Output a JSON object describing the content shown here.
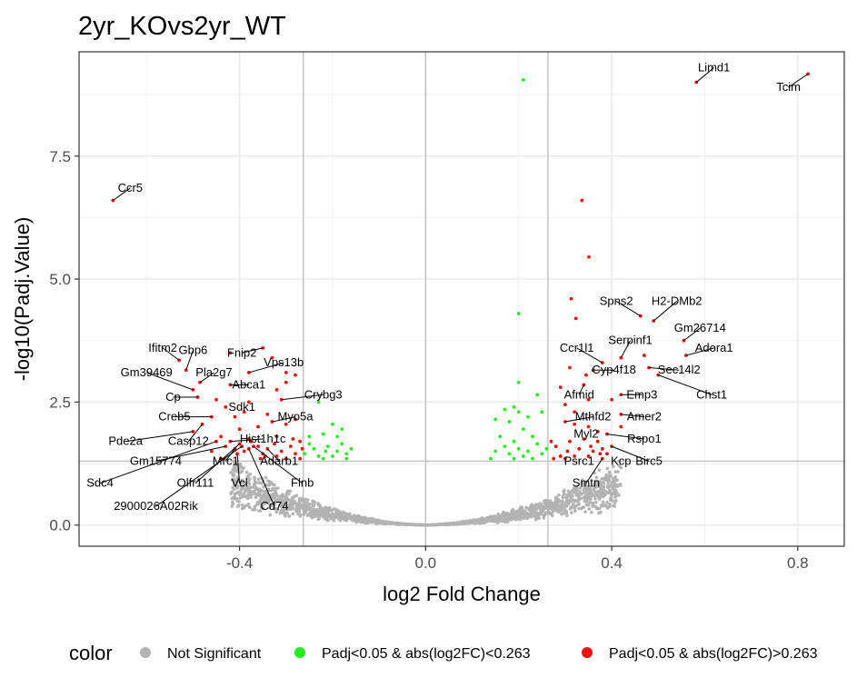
{
  "chart_data": {
    "type": "scatter",
    "title": "2yr_KOvs2yr_WT",
    "xlabel": "log2 Fold Change",
    "ylabel": "-log10(Padj.Value)",
    "xlim": [
      -0.745,
      0.9
    ],
    "ylim": [
      -0.43,
      9.62
    ],
    "x_ticks": [
      -0.4,
      0.0,
      0.4,
      0.8
    ],
    "x_tick_labels": [
      "-0.4",
      "0.0",
      "0.4",
      "0.8"
    ],
    "y_ticks": [
      0.0,
      2.5,
      5.0,
      7.5
    ],
    "y_tick_labels": [
      "0.0",
      "2.5",
      "5.0",
      "7.5"
    ],
    "vlines": [
      -0.263,
      0.0,
      0.263
    ],
    "hline": 1.3,
    "grid": true,
    "legend": {
      "title": "color",
      "position": "bottom",
      "entries": [
        {
          "label": "Not Significant",
          "color": "#b3b3b3"
        },
        {
          "label": "Padj<0.05 & abs(log2FC)<0.263",
          "color": "#22ee22"
        },
        {
          "label": "Padj<0.05 & abs(log2FC)>0.263",
          "color": "#ee1111"
        }
      ]
    },
    "series": [
      {
        "category": "Padj<0.05 & abs(log2FC)>0.263",
        "color": "#ee1111",
        "points": [
          {
            "x": 0.822,
            "y": 9.17,
            "label": "Tcim",
            "lx": 0.78,
            "ly": 8.9
          },
          {
            "x": 0.582,
            "y": 9.0,
            "label": "Limd1",
            "lx": 0.62,
            "ly": 9.3
          },
          {
            "x": -0.672,
            "y": 6.6,
            "label": "Ccr5",
            "lx": -0.635,
            "ly": 6.85
          },
          {
            "x": 0.336,
            "y": 6.6
          },
          {
            "x": 0.351,
            "y": 5.45
          },
          {
            "x": 0.313,
            "y": 4.6
          },
          {
            "x": 0.323,
            "y": 4.2
          },
          {
            "x": 0.462,
            "y": 4.25,
            "label": "Spns2",
            "lx": 0.41,
            "ly": 4.55
          },
          {
            "x": 0.49,
            "y": 4.15,
            "label": "H2-DMb2",
            "lx": 0.54,
            "ly": 4.55
          },
          {
            "x": 0.555,
            "y": 3.75,
            "label": "Gm26714",
            "lx": 0.59,
            "ly": 4.0
          },
          {
            "x": 0.56,
            "y": 3.45,
            "label": "Adora1",
            "lx": 0.62,
            "ly": 3.6
          },
          {
            "x": 0.42,
            "y": 3.4,
            "label": "Serpinf1",
            "lx": 0.44,
            "ly": 3.75
          },
          {
            "x": 0.38,
            "y": 3.3,
            "label": "Ccr1l1",
            "lx": 0.325,
            "ly": 3.6
          },
          {
            "x": 0.47,
            "y": 3.45
          },
          {
            "x": 0.36,
            "y": 3.15,
            "label": "Cyp4f18",
            "lx": 0.405,
            "ly": 3.15
          },
          {
            "x": 0.48,
            "y": 3.2,
            "label": "Sec14l2",
            "lx": 0.545,
            "ly": 3.15
          },
          {
            "x": 0.5,
            "y": 3.05,
            "label": "Chst1",
            "lx": 0.615,
            "ly": 2.65
          },
          {
            "x": 0.31,
            "y": 3.2
          },
          {
            "x": 0.345,
            "y": 3.05
          },
          {
            "x": 0.34,
            "y": 2.85,
            "label": "Afmid",
            "lx": 0.33,
            "ly": 2.65
          },
          {
            "x": 0.42,
            "y": 2.65,
            "label": "Emp3",
            "lx": 0.465,
            "ly": 2.65
          },
          {
            "x": 0.42,
            "y": 2.25,
            "label": "Amer2",
            "lx": 0.47,
            "ly": 2.2
          },
          {
            "x": 0.29,
            "y": 2.8
          },
          {
            "x": 0.3,
            "y": 2.45
          },
          {
            "x": 0.32,
            "y": 2.3
          },
          {
            "x": 0.35,
            "y": 2.55
          },
          {
            "x": 0.4,
            "y": 2.55
          },
          {
            "x": 0.42,
            "y": 2.0
          },
          {
            "x": 0.3,
            "y": 2.1,
            "label": "Mthfd2",
            "lx": 0.36,
            "ly": 2.2
          },
          {
            "x": 0.32,
            "y": 2.05
          },
          {
            "x": 0.35,
            "y": 2.0
          },
          {
            "x": 0.37,
            "y": 1.9
          },
          {
            "x": 0.39,
            "y": 1.85,
            "label": "Rspo1",
            "lx": 0.47,
            "ly": 1.75
          },
          {
            "x": 0.31,
            "y": 1.7
          },
          {
            "x": 0.34,
            "y": 1.75,
            "label": "Myl2",
            "lx": 0.345,
            "ly": 1.85
          },
          {
            "x": 0.37,
            "y": 1.7
          },
          {
            "x": 0.4,
            "y": 1.6,
            "label": "Birc5",
            "lx": 0.48,
            "ly": 1.3
          },
          {
            "x": 0.38,
            "y": 1.55
          },
          {
            "x": 0.36,
            "y": 1.5
          },
          {
            "x": 0.35,
            "y": 1.4,
            "label": "Psrc1",
            "lx": 0.33,
            "ly": 1.3
          },
          {
            "x": 0.39,
            "y": 1.45,
            "label": "Kcp",
            "lx": 0.42,
            "ly": 1.3
          },
          {
            "x": 0.38,
            "y": 1.35,
            "label": "Smtn",
            "lx": 0.345,
            "ly": 0.85
          },
          {
            "x": 0.32,
            "y": 1.4
          },
          {
            "x": 0.33,
            "y": 1.55
          },
          {
            "x": 0.28,
            "y": 1.6
          },
          {
            "x": 0.29,
            "y": 1.4
          },
          {
            "x": 0.305,
            "y": 1.5
          },
          {
            "x": 0.355,
            "y": 1.6
          },
          {
            "x": 0.375,
            "y": 1.45
          },
          {
            "x": 0.275,
            "y": 1.35
          },
          {
            "x": 0.3,
            "y": 1.35
          },
          {
            "x": 0.27,
            "y": 1.7
          },
          {
            "x": -0.35,
            "y": 3.6,
            "label": "Fnip2",
            "lx": -0.395,
            "ly": 3.5
          },
          {
            "x": -0.42,
            "y": 3.5
          },
          {
            "x": -0.33,
            "y": 3.4
          },
          {
            "x": -0.38,
            "y": 3.1,
            "label": "Vps13b",
            "lx": -0.305,
            "ly": 3.3
          },
          {
            "x": -0.42,
            "y": 2.85,
            "label": "Abca1",
            "lx": -0.38,
            "ly": 2.85
          },
          {
            "x": -0.53,
            "y": 3.35,
            "label": "Ifitm2",
            "lx": -0.565,
            "ly": 3.6
          },
          {
            "x": -0.515,
            "y": 3.15,
            "label": "Gbp6",
            "lx": -0.5,
            "ly": 3.55
          },
          {
            "x": -0.485,
            "y": 2.9,
            "label": "Pla2g7",
            "lx": -0.455,
            "ly": 3.1
          },
          {
            "x": -0.5,
            "y": 2.75,
            "label": "Gm39469",
            "lx": -0.6,
            "ly": 3.1
          },
          {
            "x": -0.49,
            "y": 2.6,
            "label": "Cp",
            "lx": -0.543,
            "ly": 2.6
          },
          {
            "x": -0.45,
            "y": 2.55
          },
          {
            "x": -0.3,
            "y": 3.1
          },
          {
            "x": -0.28,
            "y": 3.05
          },
          {
            "x": -0.3,
            "y": 2.9
          },
          {
            "x": -0.32,
            "y": 2.75
          },
          {
            "x": -0.31,
            "y": 2.55,
            "label": "Crybg3",
            "lx": -0.22,
            "ly": 2.65
          },
          {
            "x": -0.39,
            "y": 2.3,
            "label": "Sdk1",
            "lx": -0.395,
            "ly": 2.4
          },
          {
            "x": -0.38,
            "y": 2.5
          },
          {
            "x": -0.41,
            "y": 2.2
          },
          {
            "x": -0.43,
            "y": 2.4
          },
          {
            "x": -0.46,
            "y": 2.2,
            "label": "Creb5",
            "lx": -0.54,
            "ly": 2.2
          },
          {
            "x": -0.34,
            "y": 2.25
          },
          {
            "x": -0.33,
            "y": 2.1,
            "label": "Myo5a",
            "lx": -0.28,
            "ly": 2.2
          },
          {
            "x": -0.36,
            "y": 2.0
          },
          {
            "x": -0.4,
            "y": 1.95
          },
          {
            "x": -0.3,
            "y": 2.05
          },
          {
            "x": -0.28,
            "y": 2.15
          },
          {
            "x": -0.32,
            "y": 1.8
          },
          {
            "x": -0.48,
            "y": 2.05,
            "label": "Casp12",
            "lx": -0.51,
            "ly": 1.7
          },
          {
            "x": -0.5,
            "y": 1.9,
            "label": "Pde2a",
            "lx": -0.645,
            "ly": 1.7
          },
          {
            "x": -0.44,
            "y": 1.8
          },
          {
            "x": -0.42,
            "y": 1.7,
            "label": "Hist1h1c",
            "lx": -0.35,
            "ly": 1.75
          },
          {
            "x": -0.38,
            "y": 1.75
          },
          {
            "x": -0.36,
            "y": 1.6
          },
          {
            "x": -0.34,
            "y": 1.55,
            "label": "Adarb1",
            "lx": -0.315,
            "ly": 1.3
          },
          {
            "x": -0.31,
            "y": 1.5
          },
          {
            "x": -0.29,
            "y": 1.6
          },
          {
            "x": -0.27,
            "y": 1.7
          },
          {
            "x": -0.3,
            "y": 1.35
          },
          {
            "x": -0.32,
            "y": 1.4
          },
          {
            "x": -0.35,
            "y": 1.45
          },
          {
            "x": -0.39,
            "y": 1.5
          },
          {
            "x": -0.41,
            "y": 1.55,
            "label": "Mrc1",
            "lx": -0.43,
            "ly": 1.3
          },
          {
            "x": -0.43,
            "y": 1.6,
            "label": "Gm15774",
            "lx": -0.58,
            "ly": 1.3
          },
          {
            "x": -0.45,
            "y": 1.7,
            "label": "Sdc4",
            "lx": -0.7,
            "ly": 0.85
          },
          {
            "x": -0.4,
            "y": 1.65,
            "label": "Olfr111",
            "lx": -0.495,
            "ly": 0.85
          },
          {
            "x": -0.405,
            "y": 1.45,
            "label": "Vcl",
            "lx": -0.4,
            "ly": 0.85
          },
          {
            "x": -0.395,
            "y": 1.6,
            "label": "2900026A02Rik",
            "lx": -0.58,
            "ly": 0.38
          },
          {
            "x": -0.38,
            "y": 1.55,
            "label": "Cd74",
            "lx": -0.325,
            "ly": 0.38
          },
          {
            "x": -0.37,
            "y": 1.6,
            "label": "Flnb",
            "lx": -0.265,
            "ly": 0.85
          },
          {
            "x": -0.375,
            "y": 1.7
          },
          {
            "x": -0.345,
            "y": 1.4
          },
          {
            "x": -0.28,
            "y": 1.45
          },
          {
            "x": -0.325,
            "y": 1.65
          },
          {
            "x": -0.355,
            "y": 1.35
          },
          {
            "x": -0.44,
            "y": 1.35
          },
          {
            "x": -0.46,
            "y": 1.5
          },
          {
            "x": -0.27,
            "y": 1.35
          },
          {
            "x": -0.285,
            "y": 1.75
          },
          {
            "x": -0.265,
            "y": 1.55
          }
        ]
      },
      {
        "category": "Padj<0.05 & abs(log2FC)<0.263",
        "color": "#22ee22",
        "points": [
          {
            "x": 0.21,
            "y": 9.05
          },
          {
            "x": 0.2,
            "y": 4.3
          },
          {
            "x": 0.2,
            "y": 2.9
          },
          {
            "x": 0.24,
            "y": 2.65
          },
          {
            "x": 0.19,
            "y": 2.4
          },
          {
            "x": 0.2,
            "y": 2.3
          },
          {
            "x": 0.18,
            "y": 2.1
          },
          {
            "x": 0.22,
            "y": 2.2
          },
          {
            "x": 0.25,
            "y": 2.3
          },
          {
            "x": 0.15,
            "y": 2.15
          },
          {
            "x": 0.17,
            "y": 2.35
          },
          {
            "x": 0.21,
            "y": 1.95
          },
          {
            "x": 0.23,
            "y": 1.8
          },
          {
            "x": 0.19,
            "y": 1.7
          },
          {
            "x": 0.16,
            "y": 1.8
          },
          {
            "x": 0.2,
            "y": 1.55
          },
          {
            "x": 0.22,
            "y": 1.5
          },
          {
            "x": 0.24,
            "y": 1.65
          },
          {
            "x": 0.18,
            "y": 1.45
          },
          {
            "x": 0.15,
            "y": 1.5
          },
          {
            "x": 0.21,
            "y": 1.4
          },
          {
            "x": 0.25,
            "y": 1.45
          },
          {
            "x": 0.14,
            "y": 1.35
          },
          {
            "x": 0.17,
            "y": 1.6
          },
          {
            "x": 0.23,
            "y": 1.35
          },
          {
            "x": 0.26,
            "y": 1.55
          },
          {
            "x": 0.19,
            "y": 1.35
          },
          {
            "x": -0.23,
            "y": 2.5
          },
          {
            "x": -0.2,
            "y": 2.05
          },
          {
            "x": -0.18,
            "y": 1.95
          },
          {
            "x": -0.22,
            "y": 1.85
          },
          {
            "x": -0.25,
            "y": 1.8
          },
          {
            "x": -0.21,
            "y": 1.6
          },
          {
            "x": -0.24,
            "y": 1.55
          },
          {
            "x": -0.19,
            "y": 1.5
          },
          {
            "x": -0.17,
            "y": 1.45
          },
          {
            "x": -0.16,
            "y": 1.55
          },
          {
            "x": -0.2,
            "y": 1.4
          },
          {
            "x": -0.23,
            "y": 1.4
          },
          {
            "x": -0.26,
            "y": 1.45
          },
          {
            "x": -0.18,
            "y": 1.65
          },
          {
            "x": -0.22,
            "y": 1.35
          },
          {
            "x": -0.25,
            "y": 1.65
          },
          {
            "x": -0.17,
            "y": 1.35
          },
          {
            "x": -0.215,
            "y": 1.5
          },
          {
            "x": -0.19,
            "y": 1.8
          }
        ]
      },
      {
        "category": "Not Significant",
        "color": "#b3b3b3",
        "generated": true,
        "range_x": [
          -0.42,
          0.42
        ],
        "max_y": 1.3
      }
    ]
  }
}
